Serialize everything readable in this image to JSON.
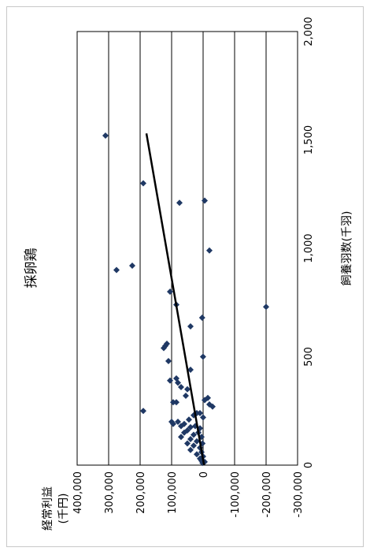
{
  "chart_data": {
    "type": "scatter",
    "orientation": "rotated-90-clockwise",
    "title": "採卵鶏",
    "xlabel": "飼養羽数(千羽)",
    "ylabel_line1": "経常利益",
    "ylabel_line2": "(千円)",
    "xlim": [
      0,
      2000
    ],
    "ylim": [
      -300000,
      400000
    ],
    "x_ticks": [
      {
        "value": 0,
        "label": "0"
      },
      {
        "value": 500,
        "label": "500"
      },
      {
        "value": 1000,
        "label": "1,000"
      },
      {
        "value": 1500,
        "label": "1,500"
      },
      {
        "value": 2000,
        "label": "2,000"
      }
    ],
    "y_ticks": [
      {
        "value": 400000,
        "label": "400,000",
        "negative": false
      },
      {
        "value": 300000,
        "label": "300,000",
        "negative": false
      },
      {
        "value": 200000,
        "label": "200,000",
        "negative": false
      },
      {
        "value": 100000,
        "label": "100,000",
        "negative": false
      },
      {
        "value": 0,
        "label": "0",
        "negative": false
      },
      {
        "value": -100000,
        "label": "-100,000",
        "negative": true
      },
      {
        "value": -200000,
        "label": "-200,000",
        "negative": true
      },
      {
        "value": -300000,
        "label": "-300,000",
        "negative": true
      }
    ],
    "grid": "horizontal-lines-at-y-ticks",
    "colors": {
      "points": "#1f3864",
      "trend": "#000000",
      "negative_labels": "#e00000",
      "grid": "#000000"
    },
    "series": [
      {
        "points": [
          [
            1520,
            310000
          ],
          [
            1300,
            190000
          ],
          [
            1210,
            75000
          ],
          [
            1220,
            -5000
          ],
          [
            990,
            -20000
          ],
          [
            920,
            225000
          ],
          [
            900,
            275000
          ],
          [
            800,
            105000
          ],
          [
            740,
            85000
          ],
          [
            730,
            -200000
          ],
          [
            680,
            3000
          ],
          [
            640,
            40000
          ],
          [
            560,
            115000
          ],
          [
            550,
            120000
          ],
          [
            540,
            125000
          ],
          [
            480,
            110000
          ],
          [
            500,
            200
          ],
          [
            440,
            40000
          ],
          [
            400,
            85000
          ],
          [
            390,
            105000
          ],
          [
            380,
            80000
          ],
          [
            360,
            70000
          ],
          [
            350,
            50000
          ],
          [
            320,
            55000
          ],
          [
            310,
            -15000
          ],
          [
            300,
            -5000
          ],
          [
            290,
            95000
          ],
          [
            290,
            85000
          ],
          [
            280,
            -20000
          ],
          [
            270,
            -30000
          ],
          [
            250,
            190000
          ],
          [
            240,
            10000
          ],
          [
            240,
            20000
          ],
          [
            230,
            30000
          ],
          [
            220,
            0
          ],
          [
            210,
            45000
          ],
          [
            200,
            100000
          ],
          [
            200,
            80000
          ],
          [
            190,
            60000
          ],
          [
            190,
            95000
          ],
          [
            180,
            70000
          ],
          [
            180,
            25000
          ],
          [
            175,
            40000
          ],
          [
            170,
            10000
          ],
          [
            160,
            50000
          ],
          [
            150,
            60000
          ],
          [
            150,
            15000
          ],
          [
            140,
            30000
          ],
          [
            130,
            70000
          ],
          [
            130,
            5000
          ],
          [
            120,
            40000
          ],
          [
            110,
            20000
          ],
          [
            100,
            50000
          ],
          [
            100,
            2000
          ],
          [
            90,
            30000
          ],
          [
            80,
            10000
          ],
          [
            70,
            40000
          ],
          [
            60,
            5000
          ],
          [
            50,
            20000
          ],
          [
            40,
            0
          ],
          [
            30,
            10000
          ],
          [
            20,
            5000
          ],
          [
            15,
            -5000
          ],
          [
            10,
            2000
          ]
        ]
      }
    ],
    "trendline": {
      "x": [
        0,
        1530
      ],
      "y": [
        -3000,
        180000
      ]
    }
  }
}
